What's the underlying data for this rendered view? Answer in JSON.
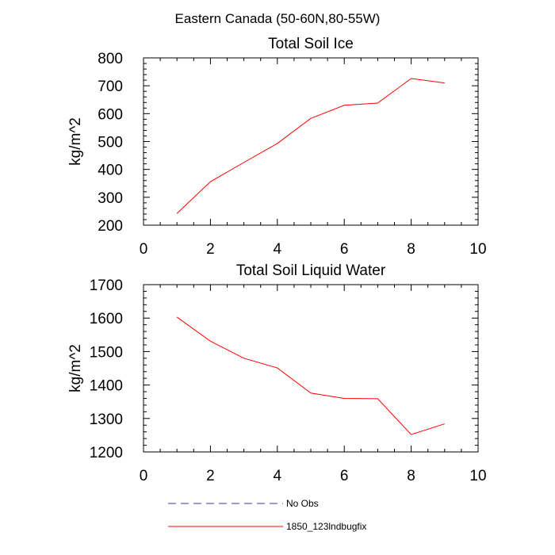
{
  "figure": {
    "title": "Eastern Canada (50-60N,80-55W)"
  },
  "chart_data": [
    {
      "type": "line",
      "title": "Total Soil Ice",
      "ylabel": "kg/m^2",
      "xlabel": "",
      "xlim": [
        0,
        10
      ],
      "ylim": [
        200,
        800
      ],
      "xticks": [
        0,
        2,
        4,
        6,
        8,
        10
      ],
      "yticks": [
        200,
        300,
        400,
        500,
        600,
        700,
        800
      ],
      "grid": false,
      "x": [
        1,
        2,
        3,
        4,
        5,
        6,
        7,
        8,
        9
      ],
      "series": [
        {
          "name": "1850_123lndbugfix",
          "color": "#ff0000",
          "dash": "solid",
          "values": [
            242,
            356,
            425,
            493,
            583,
            630,
            638,
            726,
            710
          ]
        }
      ]
    },
    {
      "type": "line",
      "title": "Total Soil Liquid Water",
      "ylabel": "kg/m^2",
      "xlabel": "",
      "xlim": [
        0,
        10
      ],
      "ylim": [
        1200,
        1700
      ],
      "xticks": [
        0,
        2,
        4,
        6,
        8,
        10
      ],
      "yticks": [
        1200,
        1300,
        1400,
        1500,
        1600,
        1700
      ],
      "grid": false,
      "x": [
        1,
        2,
        3,
        4,
        5,
        6,
        7,
        8,
        9
      ],
      "series": [
        {
          "name": "1850_123lndbugfix",
          "color": "#ff0000",
          "dash": "solid",
          "values": [
            1603,
            1531,
            1480,
            1451,
            1376,
            1360,
            1359,
            1252,
            1284
          ]
        }
      ]
    }
  ],
  "legend": {
    "placement": "bottom",
    "entries": [
      {
        "label": "No Obs",
        "color": "#3a3aa0",
        "dash": "dashed"
      },
      {
        "label": "1850_123lndbugfix",
        "color": "#ff0000",
        "dash": "solid"
      }
    ]
  }
}
